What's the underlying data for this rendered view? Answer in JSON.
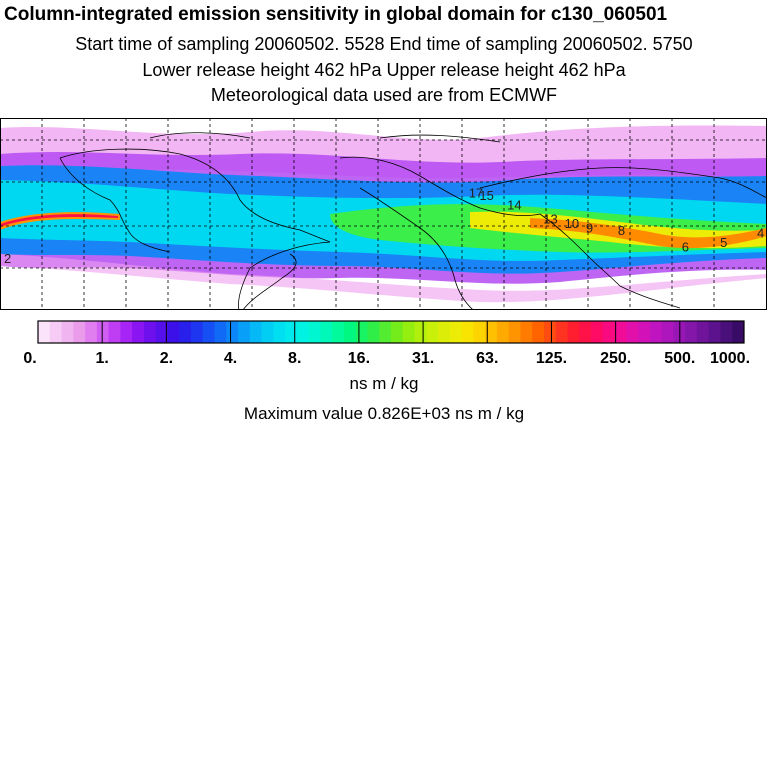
{
  "header": {
    "title": "Column-integrated emission sensitivity in global domain for c130_060501",
    "line1": "Start time of sampling 20060502.  5528     End time of sampling 20060502.  5750",
    "line2": "Lower release height  462 hPa        Upper release height  462 hPa",
    "line3": "Meteorological data used are from ECMWF"
  },
  "colorbar": {
    "tick_labels": [
      "0.",
      "1.",
      "2.",
      "4.",
      "8.",
      "16.",
      "31.",
      "63.",
      "125.",
      "250.",
      "500.",
      "1000."
    ],
    "colors": [
      "#fbe4fb",
      "#f6ccf6",
      "#f0b4f0",
      "#ea9cea",
      "#e07ef0",
      "#d15ef2",
      "#bf3ef4",
      "#a624f5",
      "#8a14f2",
      "#6e10ee",
      "#5610ec",
      "#3c10e8",
      "#2a20ec",
      "#1e36f0",
      "#1650f4",
      "#106af6",
      "#0c86f8",
      "#089ff8",
      "#05b8f6",
      "#02cef4",
      "#00def2",
      "#00eaee",
      "#00f2e2",
      "#00f6d0",
      "#00f8b8",
      "#00fa9c",
      "#00f880",
      "#18f464",
      "#30ee48",
      "#54ec30",
      "#74ec1c",
      "#94ee10",
      "#b0f00c",
      "#c8f00a",
      "#dcee08",
      "#ecec06",
      "#f8e400",
      "#fcd400",
      "#fec000",
      "#ffaa00",
      "#ff9400",
      "#ff7c00",
      "#ff6400",
      "#ff4c10",
      "#ff3420",
      "#ff1e30",
      "#ff1248",
      "#ff0a64",
      "#fa0a80",
      "#f00c96",
      "#e210aa",
      "#d212b8",
      "#c014c0",
      "#ac16bc",
      "#9816b4",
      "#8416aa",
      "#70149c",
      "#5c128c",
      "#4a107a",
      "#380c66"
    ]
  },
  "units": "ns m / kg",
  "maximum": "Maximum value  0.826E+03 ns m / kg",
  "map_labels": [
    {
      "text": "2",
      "lon": -180,
      "lat": 20
    },
    {
      "text": "17",
      "lon": 40,
      "lat": 48
    },
    {
      "text": "15",
      "lon": 45,
      "lat": 47
    },
    {
      "text": "14",
      "lon": 58,
      "lat": 43
    },
    {
      "text": "13",
      "lon": 75,
      "lat": 37
    },
    {
      "text": "10",
      "lon": 85,
      "lat": 35
    },
    {
      "text": "9",
      "lon": 95,
      "lat": 33
    },
    {
      "text": "8",
      "lon": 110,
      "lat": 32
    },
    {
      "text": "6",
      "lon": 140,
      "lat": 25
    },
    {
      "text": "5",
      "lon": 158,
      "lat": 27
    },
    {
      "text": "4",
      "lon": 178,
      "lat": 31
    }
  ]
}
